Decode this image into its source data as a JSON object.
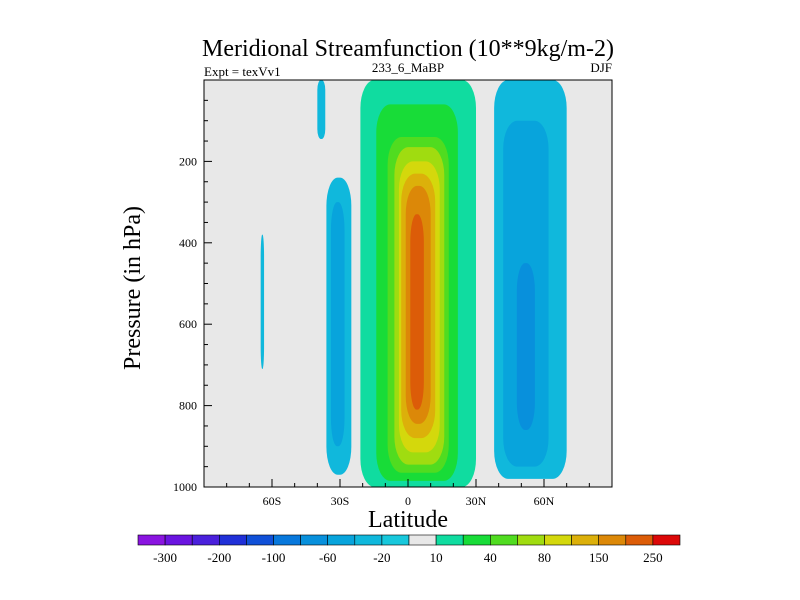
{
  "chart_data": {
    "type": "heatmap",
    "subtype": "filled-contour",
    "title": "Meridional Streamfunction (10**9kg/m-2)",
    "left_label": "Expt = texVv1",
    "center_label": "233_6_MaBP",
    "right_label": "DJF",
    "xlabel": "Latitude",
    "ylabel": "Pressure (in hPa)",
    "xlim": [
      -90,
      90
    ],
    "ylim": [
      0,
      1000
    ],
    "y_inverted": true,
    "x_ticks": [
      {
        "value": -60,
        "label": "60S"
      },
      {
        "value": -30,
        "label": "30S"
      },
      {
        "value": 0,
        "label": "0"
      },
      {
        "value": 30,
        "label": "30N"
      },
      {
        "value": 60,
        "label": "60N"
      }
    ],
    "y_ticks": [
      {
        "value": 200,
        "label": "200"
      },
      {
        "value": 400,
        "label": "400"
      },
      {
        "value": 600,
        "label": "600"
      },
      {
        "value": 800,
        "label": "800"
      },
      {
        "value": 1000,
        "label": "1000"
      }
    ],
    "background_color": "#e8e8e8",
    "colorbar": {
      "levels": [
        -300,
        -250,
        -200,
        -150,
        -100,
        -80,
        -60,
        -40,
        -20,
        -10,
        10,
        20,
        40,
        60,
        80,
        100,
        150,
        200,
        250
      ],
      "labels": [
        "-300",
        "-200",
        "-100",
        "-60",
        "-20",
        "10",
        "40",
        "80",
        "150",
        "250"
      ],
      "label_after_box": [
        1,
        3,
        5,
        7,
        9,
        11,
        13,
        15,
        17,
        19
      ],
      "colors": [
        "#8a14e0",
        "#6a14e0",
        "#4a20dc",
        "#2030d8",
        "#1050d8",
        "#0878dc",
        "#0890dc",
        "#08a4dc",
        "#10b8dc",
        "#18c8dc",
        "#e8e8e8",
        "#10dca0",
        "#18dc38",
        "#50dc20",
        "#a0dc10",
        "#d4d80c",
        "#dcb00a",
        "#dc8808",
        "#dc5c08",
        "#dc0808"
      ]
    },
    "regions": [
      {
        "name": "cell-sh-strat",
        "value": -20,
        "color_index": 8,
        "lat": [
          -40,
          -36.5
        ],
        "p": [
          0,
          145
        ]
      },
      {
        "name": "cell-sh-small",
        "value": -20,
        "color_index": 8,
        "lat": [
          -65,
          -63.5
        ],
        "p": [
          380,
          710
        ]
      },
      {
        "name": "cell-sh-ferrel",
        "value": -20,
        "color_index": 8,
        "lat": [
          -36,
          -25
        ],
        "p": [
          240,
          970
        ]
      },
      {
        "name": "cell-sh-ferrel-core",
        "value": -40,
        "color_index": 7,
        "lat": [
          -34,
          -28
        ],
        "p": [
          300,
          900
        ]
      },
      {
        "name": "cell-nh-ferrel",
        "value": -20,
        "color_index": 8,
        "lat": [
          38,
          70
        ],
        "p": [
          0,
          980
        ]
      },
      {
        "name": "cell-nh-ferrel-inner",
        "value": -40,
        "color_index": 7,
        "lat": [
          42,
          62
        ],
        "p": [
          100,
          950
        ]
      },
      {
        "name": "cell-nh-ferrel-core",
        "value": -60,
        "color_index": 6,
        "lat": [
          48,
          56
        ],
        "p": [
          450,
          860
        ]
      },
      {
        "name": "cell-hadley-10",
        "value": 10,
        "color_index": 10,
        "lat": [
          -13,
          30
        ],
        "p": [
          0,
          400
        ]
      },
      {
        "name": "cell-hadley-20",
        "value": 20,
        "color_index": 11,
        "lat": [
          -21,
          30
        ],
        "p": [
          0,
          1000
        ]
      },
      {
        "name": "cell-hadley-40",
        "value": 40,
        "color_index": 12,
        "lat": [
          -14,
          22
        ],
        "p": [
          60,
          985
        ]
      },
      {
        "name": "cell-hadley-60",
        "value": 60,
        "color_index": 13,
        "lat": [
          -9,
          18
        ],
        "p": [
          140,
          965
        ]
      },
      {
        "name": "cell-hadley-80",
        "value": 80,
        "color_index": 14,
        "lat": [
          -6,
          16
        ],
        "p": [
          165,
          945
        ]
      },
      {
        "name": "cell-hadley-100",
        "value": 100,
        "color_index": 15,
        "lat": [
          -4,
          14
        ],
        "p": [
          200,
          915
        ]
      },
      {
        "name": "cell-hadley-150",
        "value": 150,
        "color_index": 16,
        "lat": [
          -3,
          12
        ],
        "p": [
          230,
          880
        ]
      },
      {
        "name": "cell-hadley-200",
        "value": 200,
        "color_index": 17,
        "lat": [
          -1,
          10
        ],
        "p": [
          260,
          845
        ]
      },
      {
        "name": "cell-hadley-250",
        "value": 250,
        "color_index": 18,
        "lat": [
          1,
          7
        ],
        "p": [
          330,
          810
        ]
      }
    ]
  }
}
